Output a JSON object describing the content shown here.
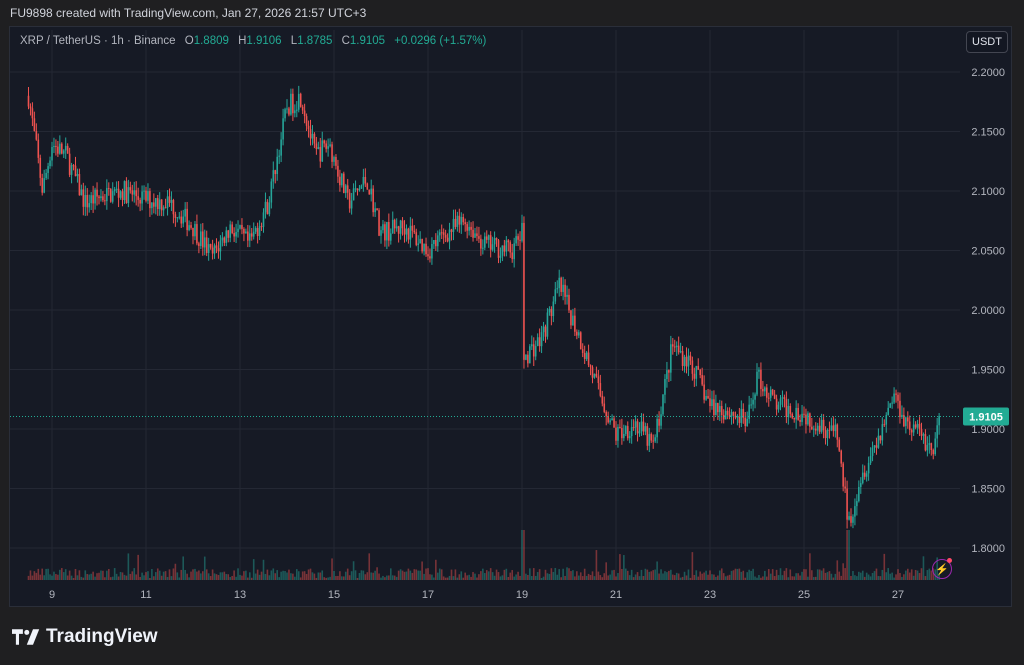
{
  "caption": "FU9898 created with TradingView.com, Jan 27, 2026 21:57 UTC+3",
  "symbol": {
    "name": "XRP / TetherUS · 1h · Binance",
    "o_label": "O",
    "o_value": "1.8809",
    "h_label": "H",
    "h_value": "1.9106",
    "l_label": "L",
    "l_value": "1.8785",
    "c_label": "C",
    "c_value": "1.9105",
    "change": "+0.0296 (+1.57%)"
  },
  "currency_button": "USDT",
  "brand": "TradingView",
  "colors": {
    "up": "#26a69a",
    "down": "#ef5350",
    "background": "#161a25",
    "grid": "#242834",
    "price_tag": "#22ab94"
  },
  "chart_data": {
    "type": "candlestick",
    "title": "XRP / TetherUS · 1h · Binance",
    "x_ticks": [
      "9",
      "11",
      "13",
      "15",
      "17",
      "19",
      "21",
      "23",
      "25",
      "27"
    ],
    "y_ticks": [
      "2.2000",
      "2.1500",
      "2.1000",
      "2.0500",
      "2.0000",
      "1.9500",
      "1.9000",
      "1.8500",
      "1.8000"
    ],
    "ylim": [
      1.775,
      2.22
    ],
    "last_price": 1.9105,
    "last_price_label": "1.9105",
    "grid": true,
    "day_close_path": [
      {
        "day": 8.5,
        "close": 2.18
      },
      {
        "day": 8.8,
        "close": 2.1
      },
      {
        "day": 9.0,
        "close": 2.14
      },
      {
        "day": 9.3,
        "close": 2.13
      },
      {
        "day": 9.7,
        "close": 2.09
      },
      {
        "day": 10.0,
        "close": 2.095
      },
      {
        "day": 10.5,
        "close": 2.1
      },
      {
        "day": 11.0,
        "close": 2.093
      },
      {
        "day": 11.5,
        "close": 2.09
      },
      {
        "day": 12.0,
        "close": 2.07
      },
      {
        "day": 12.4,
        "close": 2.045
      },
      {
        "day": 12.8,
        "close": 2.07
      },
      {
        "day": 13.2,
        "close": 2.055
      },
      {
        "day": 13.6,
        "close": 2.09
      },
      {
        "day": 14.0,
        "close": 2.17
      },
      {
        "day": 14.3,
        "close": 2.18
      },
      {
        "day": 14.6,
        "close": 2.13
      },
      {
        "day": 14.9,
        "close": 2.14
      },
      {
        "day": 15.3,
        "close": 2.09
      },
      {
        "day": 15.7,
        "close": 2.11
      },
      {
        "day": 16.0,
        "close": 2.065
      },
      {
        "day": 16.5,
        "close": 2.07
      },
      {
        "day": 17.0,
        "close": 2.05
      },
      {
        "day": 17.4,
        "close": 2.065
      },
      {
        "day": 17.8,
        "close": 2.075
      },
      {
        "day": 18.2,
        "close": 2.055
      },
      {
        "day": 18.8,
        "close": 2.05
      },
      {
        "day": 19.0,
        "close": 2.065
      },
      {
        "day": 19.02,
        "close": 1.96
      },
      {
        "day": 19.4,
        "close": 1.975
      },
      {
        "day": 19.8,
        "close": 2.02
      },
      {
        "day": 20.2,
        "close": 1.98
      },
      {
        "day": 20.6,
        "close": 1.935
      },
      {
        "day": 21.0,
        "close": 1.895
      },
      {
        "day": 21.4,
        "close": 1.905
      },
      {
        "day": 21.8,
        "close": 1.885
      },
      {
        "day": 22.2,
        "close": 1.97
      },
      {
        "day": 22.6,
        "close": 1.955
      },
      {
        "day": 23.0,
        "close": 1.92
      },
      {
        "day": 23.4,
        "close": 1.915
      },
      {
        "day": 23.8,
        "close": 1.905
      },
      {
        "day": 24.0,
        "close": 1.945
      },
      {
        "day": 24.4,
        "close": 1.92
      },
      {
        "day": 24.9,
        "close": 1.915
      },
      {
        "day": 25.3,
        "close": 1.905
      },
      {
        "day": 25.7,
        "close": 1.895
      },
      {
        "day": 25.95,
        "close": 1.82
      },
      {
        "day": 26.2,
        "close": 1.86
      },
      {
        "day": 26.6,
        "close": 1.895
      },
      {
        "day": 26.9,
        "close": 1.93
      },
      {
        "day": 27.2,
        "close": 1.905
      },
      {
        "day": 27.5,
        "close": 1.895
      },
      {
        "day": 27.75,
        "close": 1.88
      },
      {
        "day": 27.9,
        "close": 1.9105
      }
    ]
  }
}
